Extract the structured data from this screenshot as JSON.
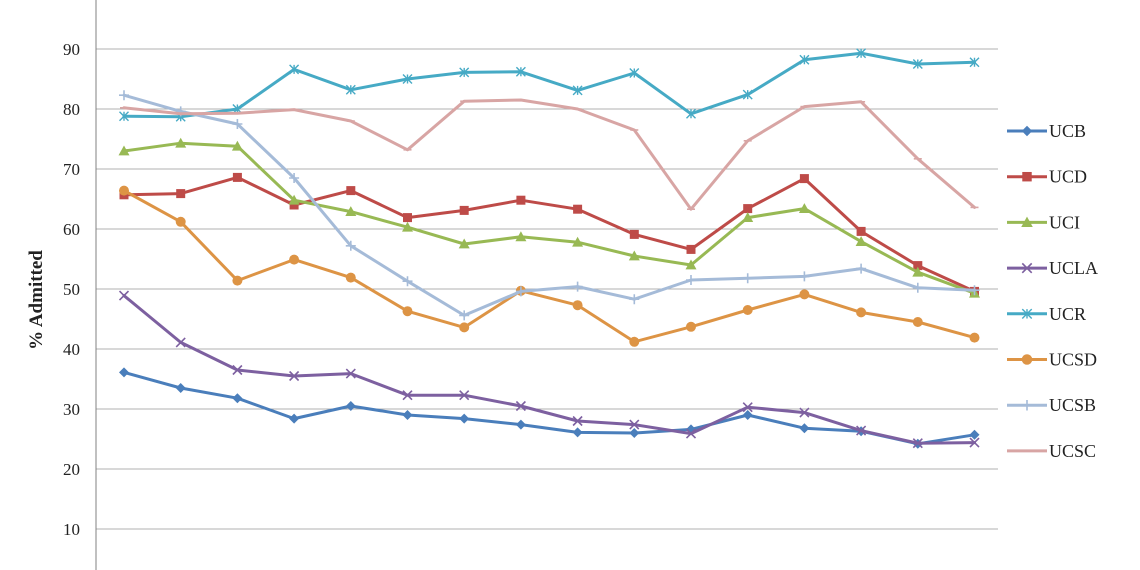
{
  "chart_data": {
    "type": "line",
    "title": "",
    "xlabel": "",
    "ylabel": "% Admitted",
    "ylim": [
      5,
      97
    ],
    "yticks": [
      10,
      20,
      30,
      40,
      50,
      60,
      70,
      80,
      90
    ],
    "grid": true,
    "legend_position": "right",
    "x": [
      1,
      2,
      3,
      4,
      5,
      6,
      7,
      8,
      9,
      10,
      11,
      12,
      13,
      14,
      15,
      16
    ],
    "series": [
      {
        "name": "UCB",
        "color": "#4a7ebb",
        "marker": "diamond",
        "values": [
          36.1,
          33.5,
          31.8,
          28.4,
          30.5,
          29.0,
          28.4,
          27.4,
          26.1,
          26.0,
          26.6,
          29.0,
          26.8,
          26.3,
          24.2,
          25.7
        ]
      },
      {
        "name": "UCD",
        "color": "#be4b48",
        "marker": "square",
        "values": [
          65.7,
          65.9,
          68.6,
          64.0,
          66.4,
          61.9,
          63.1,
          64.8,
          63.3,
          59.1,
          56.6,
          63.4,
          68.4,
          59.6,
          53.9,
          49.6
        ]
      },
      {
        "name": "UCI",
        "color": "#98b954",
        "marker": "triangle",
        "values": [
          73.0,
          74.3,
          73.8,
          64.8,
          62.9,
          60.3,
          57.5,
          58.7,
          57.8,
          55.5,
          54.0,
          61.9,
          63.4,
          57.9,
          52.8,
          49.3
        ]
      },
      {
        "name": "UCLA",
        "color": "#7d60a0",
        "marker": "x",
        "values": [
          48.9,
          41.1,
          36.5,
          35.5,
          35.9,
          32.3,
          32.3,
          30.5,
          28.0,
          27.4,
          25.9,
          30.3,
          29.4,
          26.4,
          24.3,
          24.4
        ]
      },
      {
        "name": "UCR",
        "color": "#46aac5",
        "marker": "star",
        "values": [
          78.8,
          78.7,
          80.0,
          86.6,
          83.2,
          85.0,
          86.1,
          86.2,
          83.1,
          86.0,
          79.2,
          82.4,
          88.2,
          89.3,
          87.5,
          87.8
        ]
      },
      {
        "name": "UCSD",
        "color": "#dd9445",
        "marker": "circle",
        "values": [
          66.4,
          61.2,
          51.4,
          54.9,
          51.9,
          46.3,
          43.6,
          49.7,
          47.3,
          41.2,
          43.7,
          46.5,
          49.1,
          46.1,
          44.5,
          41.9
        ]
      },
      {
        "name": "UCSB",
        "color": "#a5bbd8",
        "marker": "plus",
        "values": [
          82.3,
          79.6,
          77.5,
          68.5,
          57.2,
          51.3,
          45.6,
          49.6,
          50.4,
          48.3,
          51.5,
          51.8,
          52.1,
          53.4,
          50.2,
          49.8
        ]
      },
      {
        "name": "UCSC",
        "color": "#d8a5a4",
        "marker": "dash",
        "values": [
          80.2,
          79.2,
          79.3,
          79.9,
          78.0,
          73.2,
          81.3,
          81.5,
          80.0,
          76.5,
          63.3,
          74.7,
          80.4,
          81.2,
          71.7,
          63.6
        ]
      }
    ]
  }
}
